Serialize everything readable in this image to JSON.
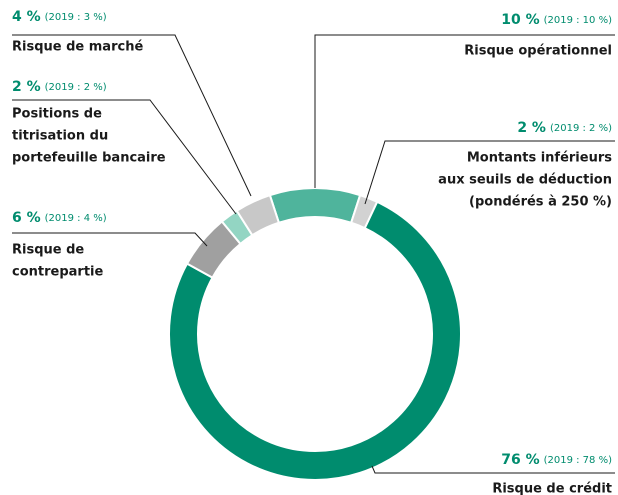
{
  "chart_data": {
    "type": "donut",
    "categories": [
      [
        "Risque opérationnel"
      ],
      [
        "Montants inférieurs",
        "aux seuils de déduction",
        "(pondérés à 250 %)"
      ],
      [
        "Risque de crédit"
      ],
      [
        "Risque de",
        "contrepartie"
      ],
      [
        "Positions de",
        "titrisation du",
        "portefeuille bancaire"
      ],
      [
        "Risque de marché"
      ]
    ],
    "values": [
      10,
      2,
      76,
      6,
      2,
      4
    ],
    "value_labels": [
      "10 %",
      "2 %",
      "76 %",
      "6 %",
      "2 %",
      "4 %"
    ],
    "prior_labels": [
      "(2019 : 10 %)",
      "(2019 : 2 %)",
      "(2019 : 78 %)",
      "(2019 : 4 %)",
      "(2019 : 2 %)",
      "(2019 : 3 %)"
    ],
    "colors": [
      "#4fb49c",
      "#d2d2d2",
      "#008c6e",
      "#a0a0a0",
      "#93d5c3",
      "#c8c8c8"
    ]
  }
}
